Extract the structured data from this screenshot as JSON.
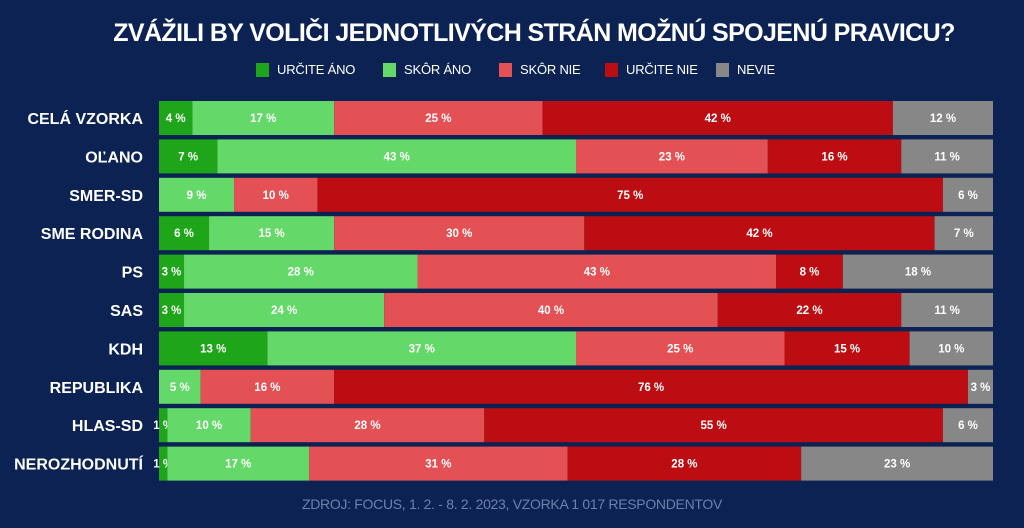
{
  "title": "ZVÁŽILI BY VOLIČI JEDNOTLIVÝCH STRÁN MOŽNÚ SPOJENÚ PRAVICU?",
  "footer": "ZDROJ: FOCUS, 1. 2. - 8. 2. 2023, VZORKA 1 017 RESPONDENTOV",
  "legend": [
    {
      "label": "URČITE ÁNO",
      "color": "#1ea51a"
    },
    {
      "label": "SKÔR ÁNO",
      "color": "#64d868"
    },
    {
      "label": "SKÔR NIE",
      "color": "#e35155"
    },
    {
      "label": "URČITE NIE",
      "color": "#bc0e12"
    },
    {
      "label": "NEVIE",
      "color": "#878787"
    }
  ],
  "chart_data": {
    "type": "bar",
    "orientation": "horizontal",
    "stacked": true,
    "normalized": true,
    "title": "ZVÁŽILI BY VOLIČI JEDNOTLIVÝCH STRÁN MOŽNÚ SPOJENÚ PRAVICU?",
    "xlabel": "",
    "ylabel": "",
    "unit": "%",
    "legend_position": "top",
    "grid": false,
    "categories": [
      "CELÁ VZORKA",
      "OĽANO",
      "SMER-SD",
      "SME RODINA",
      "PS",
      "SAS",
      "KDH",
      "REPUBLIKA",
      "HLAS-SD",
      "NEROZHODNUTÍ"
    ],
    "series": [
      {
        "name": "URČITE ÁNO",
        "color": "#1ea51a",
        "values": [
          4,
          7,
          0,
          6,
          3,
          3,
          13,
          0,
          1,
          1
        ]
      },
      {
        "name": "SKÔR ÁNO",
        "color": "#64d868",
        "values": [
          17,
          43,
          9,
          15,
          28,
          24,
          37,
          5,
          10,
          17
        ]
      },
      {
        "name": "SKÔR NIE",
        "color": "#e35155",
        "values": [
          25,
          23,
          10,
          30,
          43,
          40,
          25,
          16,
          28,
          31
        ]
      },
      {
        "name": "URČITE NIE",
        "color": "#bc0e12",
        "values": [
          42,
          16,
          75,
          42,
          8,
          22,
          15,
          76,
          55,
          28
        ]
      },
      {
        "name": "NEVIE",
        "color": "#878787",
        "values": [
          12,
          11,
          6,
          7,
          18,
          11,
          10,
          3,
          6,
          23
        ]
      }
    ]
  }
}
